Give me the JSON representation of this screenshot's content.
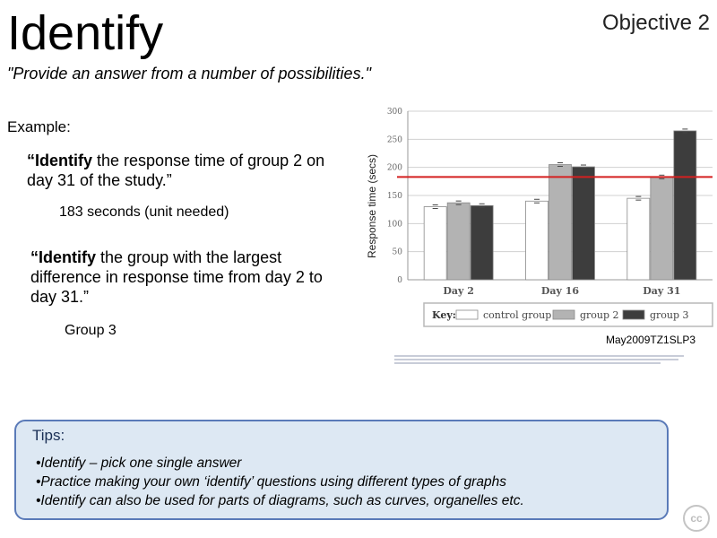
{
  "slide": {
    "title": "Identify",
    "objective": "Objective 2",
    "definition": "\"Provide an answer from a number of possibilities.\"",
    "example_label": "Example:",
    "question1_verb": "“Identify",
    "question1_rest": " the response time of group 2 on day 31 of the study.”",
    "answer1": "183 seconds (unit needed)",
    "question2_verb": "“Identify",
    "question2_rest": " the group with the largest difference in response time from day 2 to day 31.”",
    "answer2": "Group 3",
    "source_ref": "May2009TZ1SLP3"
  },
  "tips": {
    "title": "Tips:",
    "items": [
      "•Identify – pick one single answer",
      "•Practice making your own ‘identify’ questions using different types of graphs",
      "•Identify can also be used for parts of diagrams, such as curves, organelles etc."
    ]
  },
  "chart_data": {
    "type": "bar",
    "ylabel": "Response time (secs)",
    "ylim": [
      0,
      300
    ],
    "yticks": [
      0,
      50,
      100,
      150,
      200,
      250,
      300
    ],
    "categories": [
      "Day 2",
      "Day 16",
      "Day 31"
    ],
    "series": [
      {
        "name": "control group",
        "values": [
          130,
          140,
          145
        ],
        "color": "#ffffff"
      },
      {
        "name": "group 2",
        "values": [
          137,
          205,
          183
        ],
        "color": "#b3b3b3"
      },
      {
        "name": "group 3",
        "values": [
          132,
          201,
          265
        ],
        "color": "#3d3d3d"
      }
    ],
    "reference_line": 183,
    "reference_color": "#d42020",
    "legend_key": "Key:",
    "legend_position": "bottom",
    "grid": true
  }
}
